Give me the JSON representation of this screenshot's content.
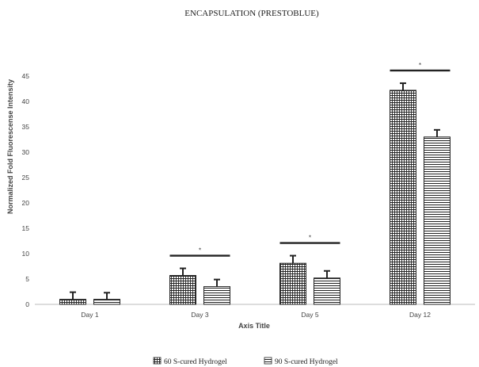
{
  "chart_data": {
    "type": "bar",
    "title": "ENCAPSULATION (PRESTOBLUE)",
    "xlabel": "Axis Title",
    "ylabel": "Normalized Fold Fluorescense Intensity",
    "categories": [
      "Day 1",
      "Day 3",
      "Day 5",
      "Day 12"
    ],
    "ylim": [
      0,
      45
    ],
    "yticks": [
      0,
      5,
      10,
      15,
      20,
      25,
      30,
      35,
      40,
      45
    ],
    "grid": false,
    "legend_position": "bottom",
    "series": [
      {
        "name": "60 S-cured Hydrogel",
        "pattern": "grid",
        "values": [
          1,
          5.7,
          8.1,
          42.2
        ],
        "errors": [
          1.4,
          1.4,
          1.5,
          1.4
        ]
      },
      {
        "name": "90 S-cured Hydrogel",
        "pattern": "horizontal-lines",
        "values": [
          1,
          3.5,
          5.2,
          33
        ],
        "errors": [
          1.3,
          1.4,
          1.4,
          1.4
        ]
      }
    ],
    "significance": [
      {
        "category": "Day 3",
        "label": "*"
      },
      {
        "category": "Day 5",
        "label": "*"
      },
      {
        "category": "Day 12",
        "label": "*"
      }
    ]
  }
}
